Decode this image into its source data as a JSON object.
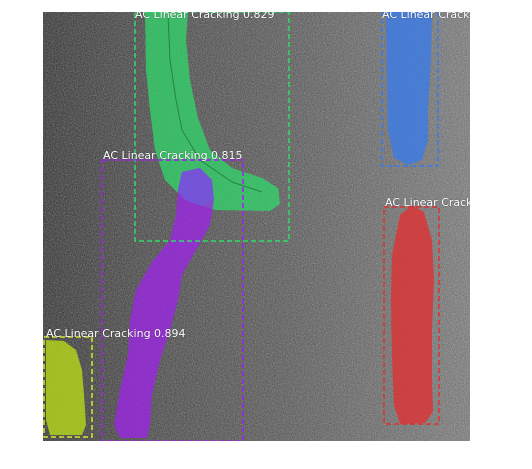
{
  "image": {
    "description_free": true,
    "background_colors": {
      "asphalt_dark": "#3a3a3a",
      "asphalt_light": "#8a8a8a",
      "page": "#ffffff"
    }
  },
  "detections": [
    {
      "label": "AC Linear Cracking 0.829",
      "color": "#2fdc6a",
      "box_color": "#2fdc6a"
    },
    {
      "label": "AC Linear Crack",
      "color": "#3a7bea",
      "box_color": "#3a7bea"
    },
    {
      "label": "AC Linear Cracking 0.815",
      "color": "#a020f0",
      "box_color": "#a020f0"
    },
    {
      "label": "AC Linear Crack",
      "color": "#e23030",
      "box_color": "#e23030"
    },
    {
      "label": "AC Linear Cracking 0.894",
      "color": "#b8d81a",
      "box_color": "#d8e82a"
    }
  ]
}
